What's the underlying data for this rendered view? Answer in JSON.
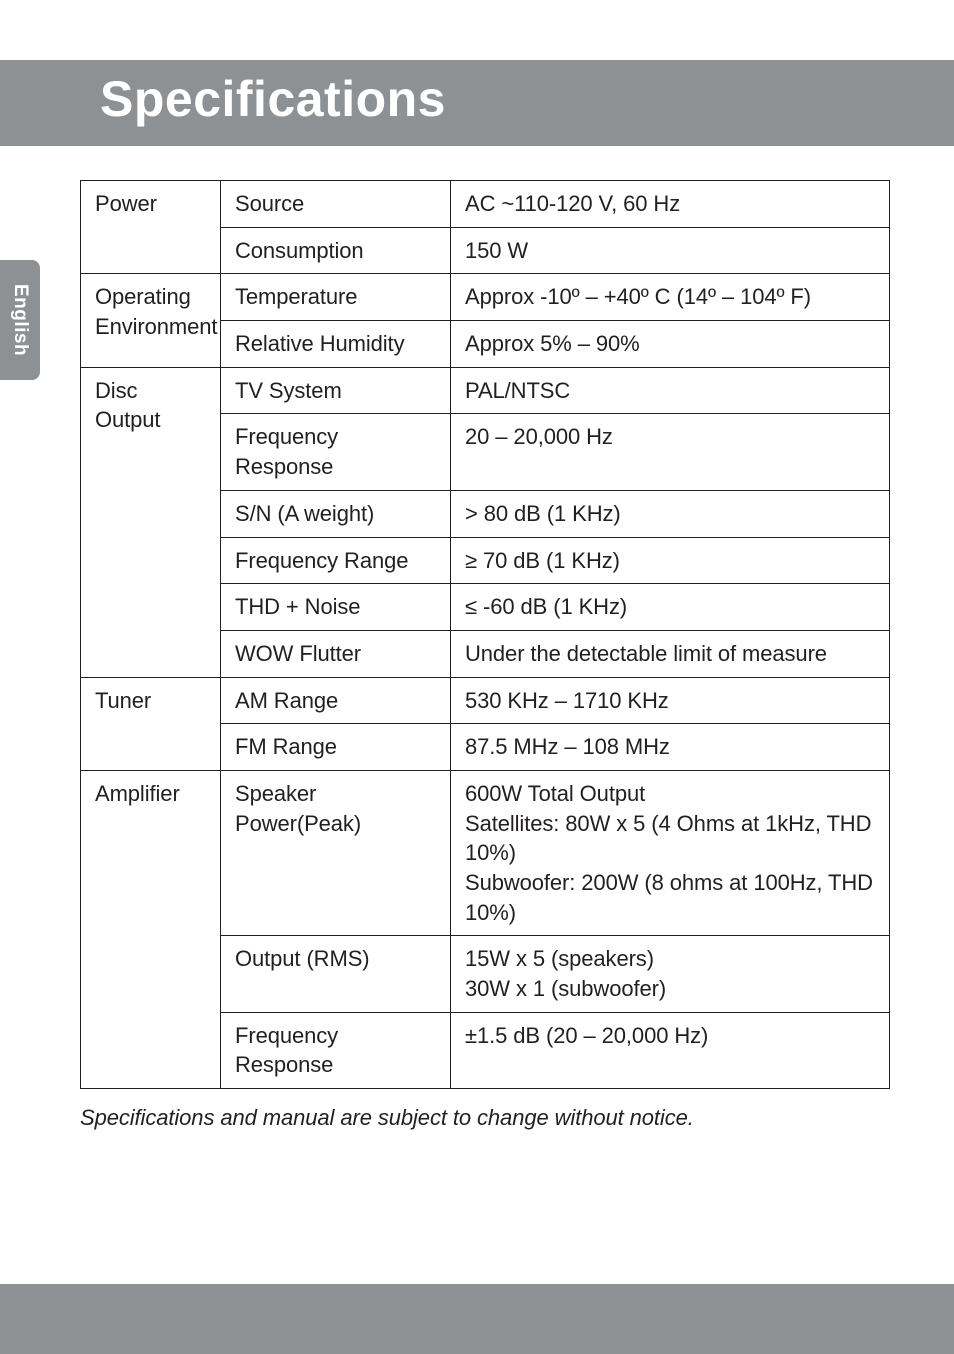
{
  "langTab": "English",
  "title": "Specifications",
  "footnote": "Specifications and manual are subject to change without notice.",
  "spec": {
    "rows": [
      {
        "cat": "Power",
        "catRowspan": 2,
        "label": "Source",
        "value": "AC ~110-120 V, 60 Hz"
      },
      {
        "label": "Consumption",
        "value": "150 W"
      },
      {
        "cat": "Operating Environment",
        "catRowspan": 2,
        "label": "Temperature",
        "value": "Approx -10º – +40º C (14º – 104º F)"
      },
      {
        "label": "Relative Humidity",
        "value": "Approx 5% – 90%"
      },
      {
        "cat": "Disc Output",
        "catRowspan": 6,
        "label": "TV System",
        "value": "PAL/NTSC"
      },
      {
        "label": "Frequency Response",
        "value": "20 – 20,000 Hz"
      },
      {
        "label": "S/N (A weight)",
        "value": "> 80 dB (1 KHz)"
      },
      {
        "label": "Frequency Range",
        "value": "≥ 70 dB (1 KHz)"
      },
      {
        "label": "THD + Noise",
        "value": "≤ -60 dB (1 KHz)"
      },
      {
        "label": "WOW Flutter",
        "value": "Under the detectable limit of measure"
      },
      {
        "cat": "Tuner",
        "catRowspan": 2,
        "label": "AM Range",
        "value": "530 KHz – 1710 KHz"
      },
      {
        "label": "FM Range",
        "value": "87.5 MHz – 108 MHz"
      },
      {
        "cat": "Amplifier",
        "catRowspan": 3,
        "label": "Speaker Power(Peak)",
        "value": "600W Total Output\nSatellites: 80W x 5 (4 Ohms at 1kHz, THD 10%)\nSubwoofer: 200W (8 ohms at 100Hz, THD 10%)"
      },
      {
        "label": "Output (RMS)",
        "value": "15W x 5 (speakers)\n30W x 1 (subwoofer)"
      },
      {
        "label": "Frequency Response",
        "value": "±1.5 dB (20 – 20,000 Hz)"
      }
    ]
  }
}
